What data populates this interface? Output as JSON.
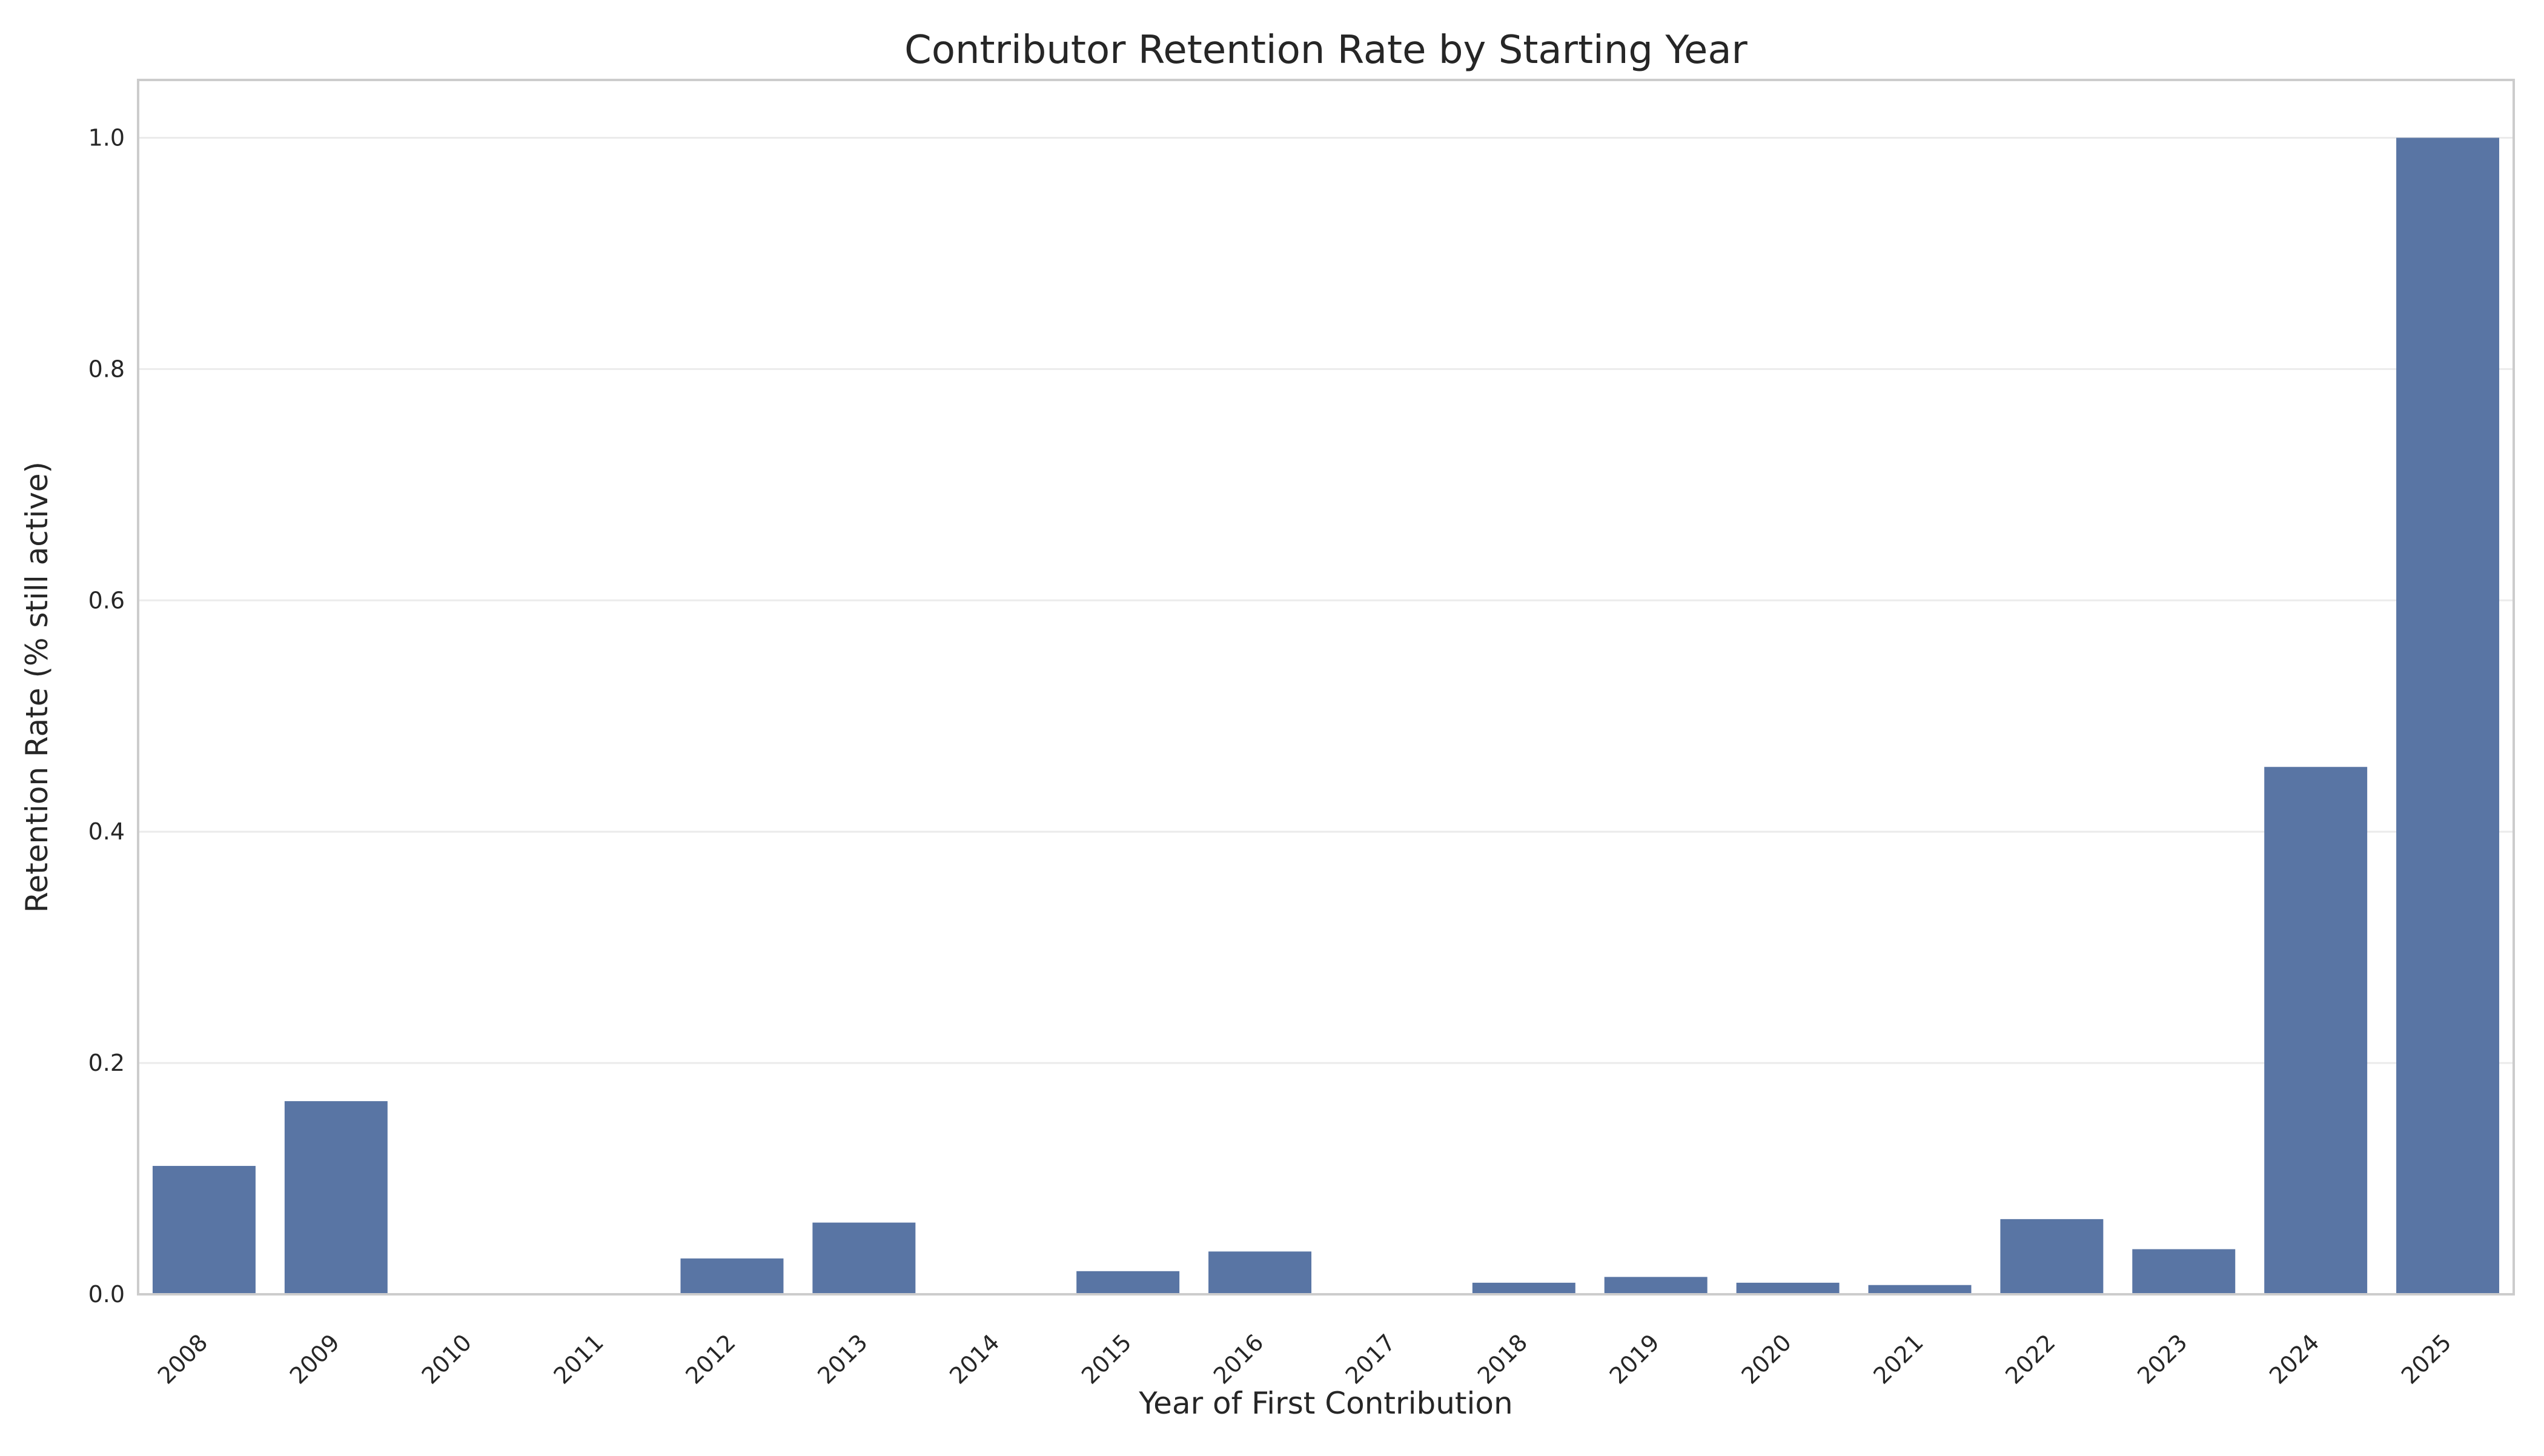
{
  "chart_data": {
    "type": "bar",
    "title": "Contributor Retention Rate by Starting Year",
    "xlabel": "Year of First Contribution",
    "ylabel": "Retention Rate (% still active)",
    "categories": [
      "2008",
      "2009",
      "2010",
      "2011",
      "2012",
      "2013",
      "2014",
      "2015",
      "2016",
      "2017",
      "2018",
      "2019",
      "2020",
      "2021",
      "2022",
      "2023",
      "2024",
      "2025"
    ],
    "values": [
      0.111,
      0.167,
      0.0,
      0.0,
      0.031,
      0.062,
      0.0,
      0.02,
      0.037,
      0.0,
      0.01,
      0.015,
      0.01,
      0.008,
      0.065,
      0.039,
      0.456,
      1.0
    ],
    "ylim": [
      0,
      1.05
    ],
    "yticks": [
      "0.0",
      "0.2",
      "0.4",
      "0.6",
      "0.8",
      "1.0"
    ],
    "grid": "horizontal",
    "bar_color": "#5975a4",
    "legend": "none"
  }
}
